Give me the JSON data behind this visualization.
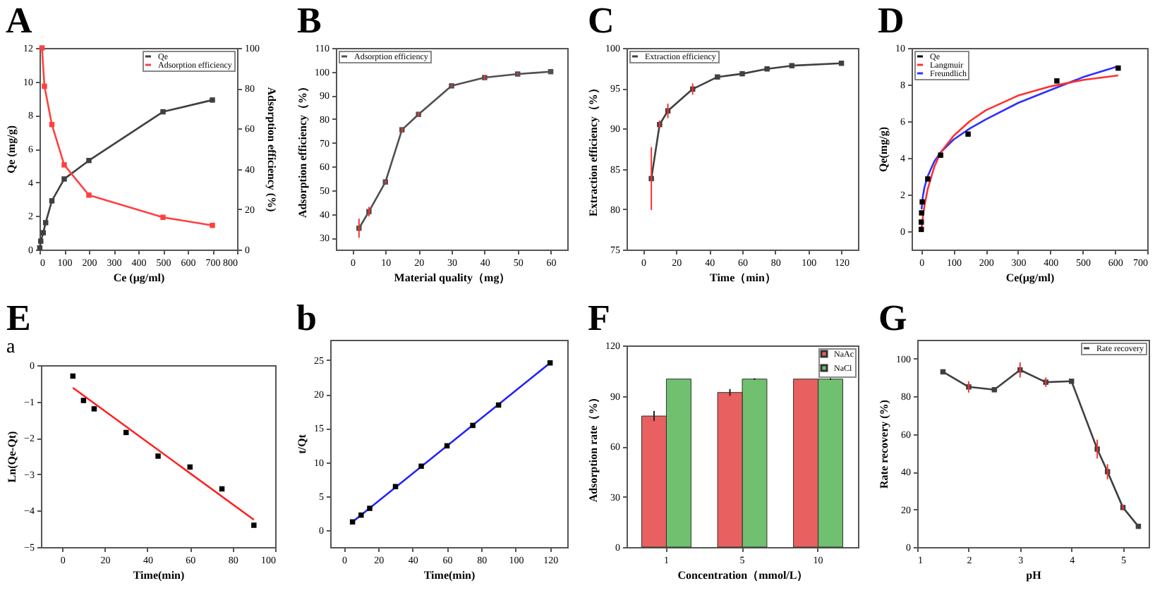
{
  "chart_data": [
    {
      "type": "line",
      "title": "A",
      "xlabel": "Ce (μg/ml)",
      "ylabel": "Qe (mg/g)",
      "y2label": "Adsorption efficiency (%)",
      "xlim": [
        0,
        800
      ],
      "xticks": [
        0,
        100,
        200,
        300,
        400,
        500,
        600,
        700,
        800
      ],
      "ylim": [
        0,
        12
      ],
      "yticks": [
        0,
        2,
        4,
        6,
        8,
        10,
        12
      ],
      "y2lim": [
        0,
        100
      ],
      "y2ticks": [
        0,
        20,
        40,
        60,
        80,
        100
      ],
      "legend": "top right",
      "marker": "square",
      "series": [
        {
          "name": "Qe",
          "color": "#404040",
          "x": [
            1,
            5,
            15,
            25,
            50,
            100,
            200,
            500,
            700
          ],
          "values": [
            0.1,
            0.5,
            1.0,
            1.6,
            2.9,
            4.2,
            5.3,
            8.2,
            8.9
          ]
        },
        {
          "name": "Adsorption efficiency",
          "color": "#ff4040",
          "axis": "y2",
          "x": [
            10,
            20,
            50,
            100,
            200,
            500,
            700
          ],
          "values": [
            100,
            81,
            62,
            42,
            27,
            16,
            12
          ]
        }
      ]
    },
    {
      "type": "line",
      "title": "B",
      "xlabel": "Material quality（mg）",
      "ylabel": "Adsorption efficiency（%）",
      "xlim": [
        -5,
        65
      ],
      "xticks": [
        0,
        10,
        20,
        30,
        40,
        50,
        60
      ],
      "ylim": [
        25,
        110
      ],
      "yticks": [
        30,
        40,
        50,
        60,
        70,
        80,
        90,
        100,
        110
      ],
      "legend": "top left",
      "marker": "square",
      "series": [
        {
          "name": "Adsorption efficiency",
          "color": "#505050",
          "x": [
            2,
            5,
            10,
            15,
            20,
            30,
            40,
            50,
            60
          ],
          "values": [
            34,
            41,
            53.5,
            75.5,
            82,
            94,
            97.5,
            99,
            100
          ],
          "errors": [
            4,
            2,
            0.5,
            1,
            1,
            0.5,
            1,
            0.5,
            0
          ]
        }
      ]
    },
    {
      "type": "line",
      "title": "C",
      "xlabel": "Time（min）",
      "ylabel": "Extraction efficiency（%）",
      "xlim": [
        -10,
        130
      ],
      "xticks": [
        0,
        20,
        40,
        60,
        80,
        100,
        120
      ],
      "ylim": [
        75,
        100
      ],
      "yticks": [
        75,
        80,
        85,
        90,
        95,
        100
      ],
      "legend": "top left",
      "marker": "square",
      "series": [
        {
          "name": "Extraction efficiency",
          "color": "#404040",
          "x": [
            5,
            10,
            15,
            30,
            45,
            60,
            75,
            90,
            120
          ],
          "values": [
            83.8,
            90.5,
            92.2,
            94.9,
            96.4,
            96.8,
            97.4,
            97.8,
            98.1
          ],
          "errors": [
            3.9,
            0.5,
            0.9,
            0.7,
            0,
            0,
            0,
            0,
            0
          ]
        }
      ]
    },
    {
      "type": "scatter",
      "title": "D",
      "xlabel": "Ce(μg/ml)",
      "ylabel": "Qe(mg/g)",
      "xlim": [
        -30,
        700
      ],
      "xticks": [
        0,
        100,
        200,
        300,
        400,
        500,
        600,
        700
      ],
      "ylim": [
        -1,
        10
      ],
      "yticks": [
        0,
        2,
        4,
        6,
        8,
        10
      ],
      "legend": "top left",
      "marker": "square",
      "series": [
        {
          "name": "Qe",
          "color": "#000000",
          "x": [
            0,
            0,
            1,
            3,
            20,
            60,
            145,
            420,
            610
          ],
          "values": [
            0.1,
            0.5,
            1.0,
            1.6,
            2.85,
            4.15,
            5.3,
            8.2,
            8.9
          ]
        },
        {
          "name": "Langmuir",
          "type": "line",
          "marker": "none",
          "color": "#ff3030",
          "x": [
            1,
            5,
            10,
            20,
            40,
            60,
            100,
            150,
            200,
            300,
            400,
            500,
            610
          ],
          "values": [
            0.2,
            0.8,
            1.4,
            2.3,
            3.5,
            4.3,
            5.2,
            6.0,
            6.6,
            7.4,
            7.9,
            8.25,
            8.5
          ]
        },
        {
          "name": "Freundlich",
          "type": "line",
          "marker": "none",
          "color": "#3030ff",
          "x": [
            1,
            2,
            5,
            10,
            20,
            40,
            60,
            100,
            150,
            200,
            300,
            400,
            500,
            610
          ],
          "values": [
            1.2,
            1.4,
            1.9,
            2.4,
            3.0,
            3.8,
            4.3,
            5.0,
            5.6,
            6.1,
            7.0,
            7.7,
            8.4,
            9.0
          ]
        }
      ]
    },
    {
      "type": "scatter",
      "title": "E",
      "subtitle": "a",
      "xlabel": "Time(min)",
      "ylabel": "Ln(Qe-Qt)",
      "xlim": [
        -10,
        100
      ],
      "xticks": [
        0,
        20,
        40,
        60,
        80,
        100
      ],
      "ylim": [
        -5,
        0
      ],
      "yticks": [
        0,
        -1,
        -2,
        -3,
        -4,
        -5
      ],
      "marker": "square",
      "series": [
        {
          "color": "#000000",
          "x": [
            5,
            10,
            15,
            30,
            45,
            60,
            75,
            90
          ],
          "values": [
            -0.3,
            -0.97,
            -1.2,
            -1.85,
            -2.5,
            -2.8,
            -3.4,
            -4.4
          ]
        },
        {
          "type": "line",
          "marker": "none",
          "color": "#ff2020",
          "x": [
            5,
            90
          ],
          "values": [
            -0.62,
            -4.25
          ]
        }
      ]
    },
    {
      "type": "scatter",
      "title": "b",
      "xlabel": "Time(min)",
      "ylabel": "t/Qt",
      "xlim": [
        -8,
        130
      ],
      "xticks": [
        0,
        20,
        40,
        60,
        80,
        100,
        120
      ],
      "ylim": [
        -2.5,
        28
      ],
      "yticks": [
        0,
        5,
        10,
        15,
        20,
        25
      ],
      "marker": "square",
      "series": [
        {
          "color": "#000000",
          "x": [
            5,
            10,
            15,
            30,
            45,
            60,
            75,
            90,
            120
          ],
          "values": [
            1.2,
            2.2,
            3.2,
            6.4,
            9.4,
            12.4,
            15.4,
            18.4,
            24.6
          ]
        },
        {
          "type": "line",
          "marker": "none",
          "color": "#2020ff",
          "x": [
            5,
            120
          ],
          "values": [
            1.2,
            24.6
          ]
        }
      ]
    },
    {
      "type": "bar",
      "title": "F",
      "xlabel": "Concentration（mmol/L）",
      "ylabel": "Adsorption rate（%）",
      "categories": [
        "1",
        "5",
        "10"
      ],
      "ylim": [
        0,
        120
      ],
      "yticks": [
        0,
        30,
        60,
        90,
        120
      ],
      "legend": "top right",
      "series": [
        {
          "name": "NaAc",
          "color": "#e86060",
          "values": [
            78,
            92,
            100
          ],
          "errors": [
            3,
            2,
            0
          ]
        },
        {
          "name": "NaCl",
          "color": "#70c070",
          "values": [
            100,
            100,
            100
          ],
          "errors": [
            0,
            0.5,
            0.5
          ]
        }
      ]
    },
    {
      "type": "line",
      "title": "G",
      "xlabel": "pH",
      "ylabel": "Rate recovery (%)",
      "xlim": [
        1,
        5.5
      ],
      "xticks": [
        1,
        2,
        3,
        4,
        5
      ],
      "ylim": [
        0,
        110
      ],
      "yticks": [
        0,
        20,
        40,
        60,
        80,
        100
      ],
      "legend": "top right",
      "marker": "square",
      "series": [
        {
          "name": "Rate recovery",
          "color": "#404040",
          "x": [
            1.5,
            2,
            2.5,
            3,
            3.5,
            4,
            4.5,
            4.7,
            5,
            5.3
          ],
          "values": [
            93,
            85,
            83.5,
            94,
            87.5,
            88,
            52,
            40,
            21,
            11
          ],
          "errors": [
            0,
            3,
            0,
            4,
            2.5,
            0,
            5,
            4,
            1.5,
            0
          ]
        }
      ]
    }
  ]
}
